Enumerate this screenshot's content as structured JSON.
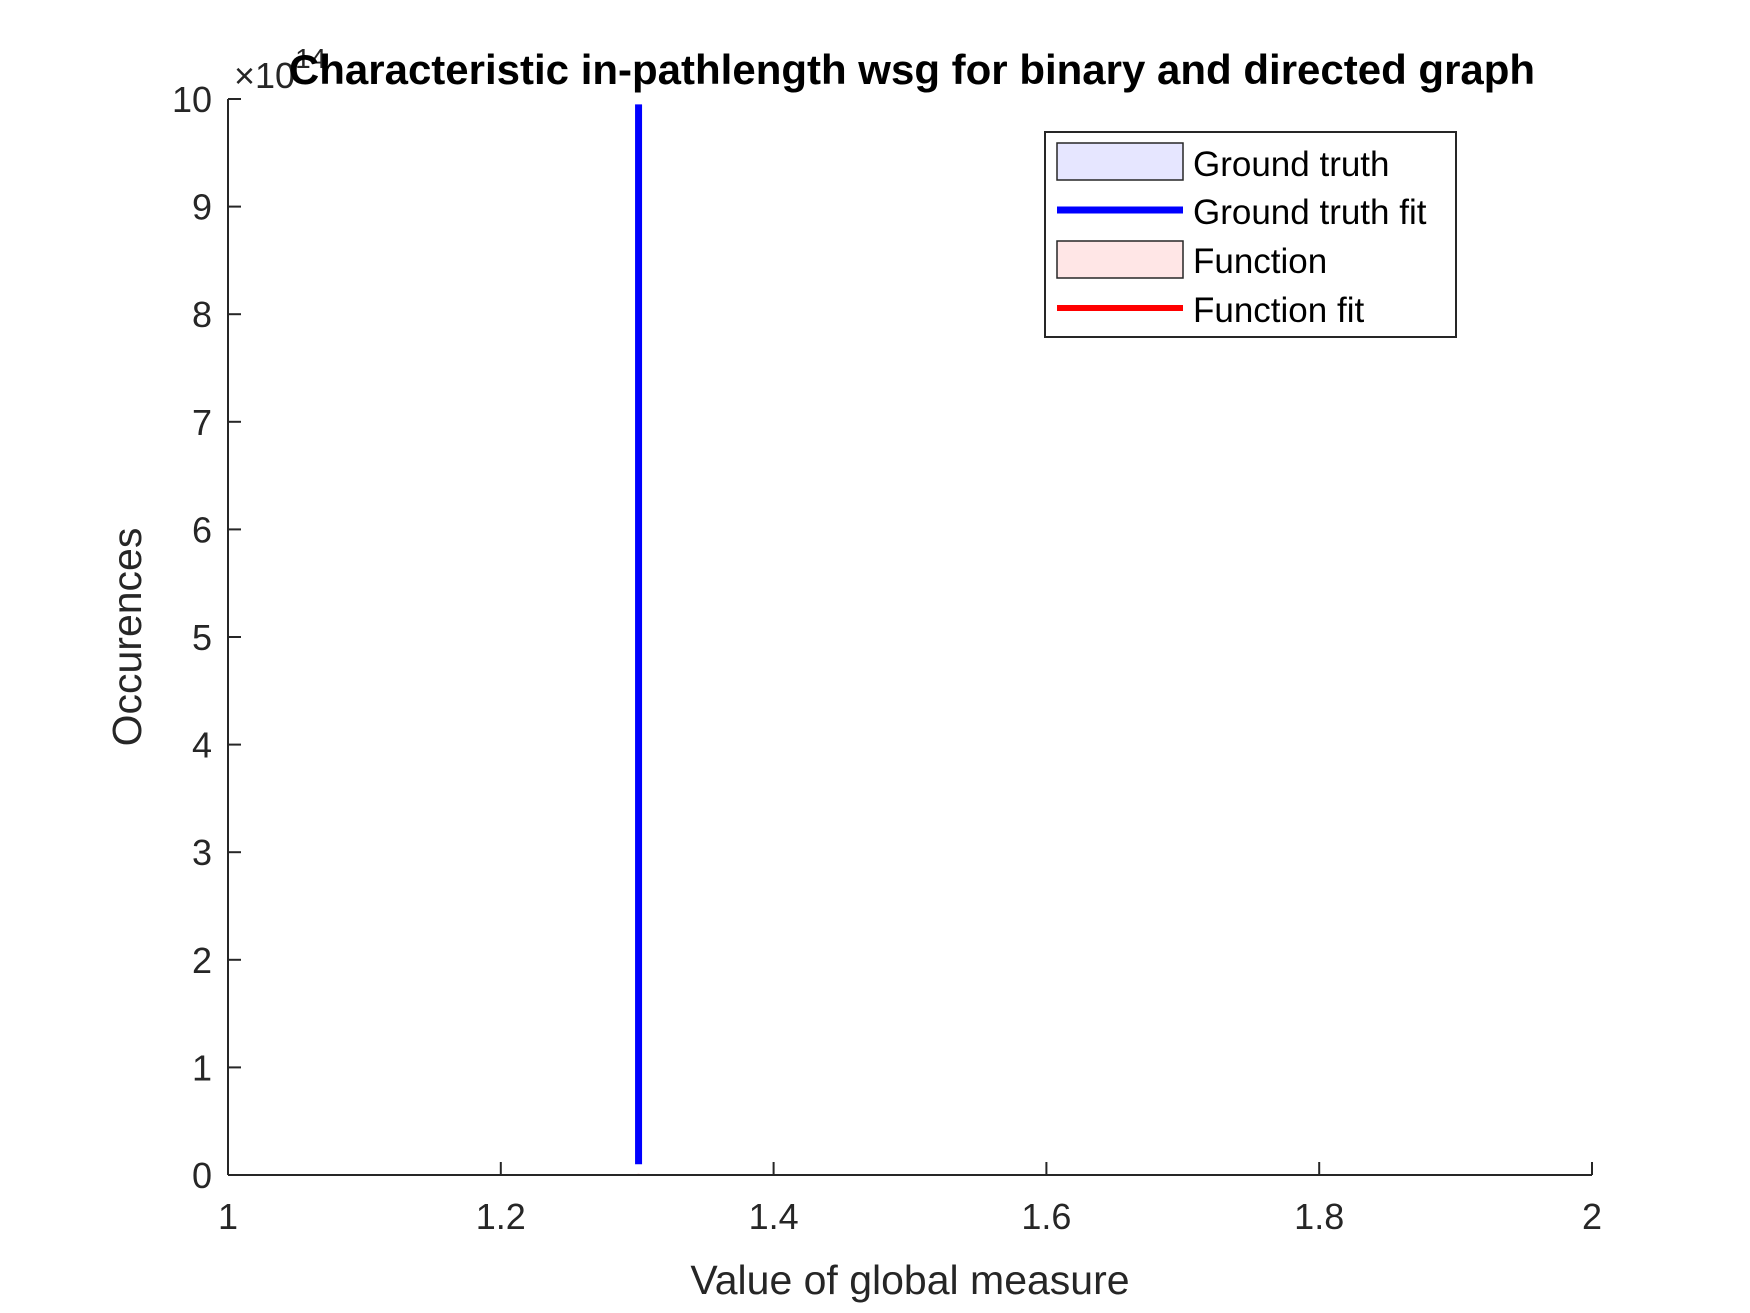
{
  "chart_data": {
    "type": "line",
    "title": "Characteristic in-pathlength wsg for binary and directed graph",
    "xlabel": "Value of global measure",
    "ylabel": "Occurences",
    "xlim": [
      1,
      2
    ],
    "ylim": [
      0,
      10
    ],
    "y_exponent_label": "×10",
    "y_exponent_power": "14",
    "x_ticks": [
      {
        "value": 1,
        "label": "1"
      },
      {
        "value": 1.2,
        "label": "1.2"
      },
      {
        "value": 1.4,
        "label": "1.4"
      },
      {
        "value": 1.6,
        "label": "1.6"
      },
      {
        "value": 1.8,
        "label": "1.8"
      },
      {
        "value": 2,
        "label": "2"
      }
    ],
    "y_ticks": [
      {
        "value": 0,
        "label": "0"
      },
      {
        "value": 1,
        "label": "1"
      },
      {
        "value": 2,
        "label": "2"
      },
      {
        "value": 3,
        "label": "3"
      },
      {
        "value": 4,
        "label": "4"
      },
      {
        "value": 5,
        "label": "5"
      },
      {
        "value": 6,
        "label": "6"
      },
      {
        "value": 7,
        "label": "7"
      },
      {
        "value": 8,
        "label": "8"
      },
      {
        "value": 9,
        "label": "9"
      },
      {
        "value": 10,
        "label": "10"
      }
    ],
    "grid": false,
    "legend_position": "top-right",
    "series": [
      {
        "name": "Ground truth",
        "kind": "patch",
        "color": "#e6e6ff",
        "x": [],
        "y": []
      },
      {
        "name": "Ground truth fit",
        "kind": "line",
        "color": "#0000ff",
        "x": [
          1.301,
          1.301
        ],
        "y": [
          0.1,
          9.95
        ]
      },
      {
        "name": "Function",
        "kind": "patch",
        "color": "#ffe6e6",
        "x": [],
        "y": []
      },
      {
        "name": "Function fit",
        "kind": "line",
        "color": "#ff0000",
        "x": [
          1.301,
          1.301
        ],
        "y": [
          0,
          0.01
        ]
      }
    ]
  }
}
